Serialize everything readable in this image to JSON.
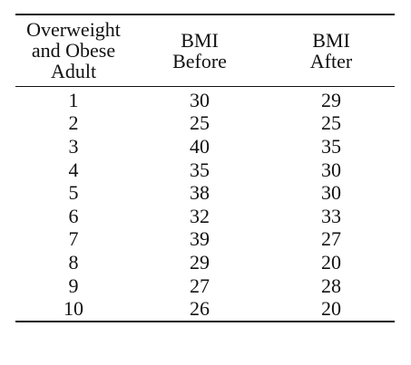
{
  "table": {
    "headers": [
      [
        "Overweight",
        "and Obese",
        "Adult"
      ],
      [
        "BMI",
        "Before"
      ],
      [
        "BMI",
        "After"
      ]
    ],
    "rows": [
      [
        "1",
        "30",
        "29"
      ],
      [
        "2",
        "25",
        "25"
      ],
      [
        "3",
        "40",
        "35"
      ],
      [
        "4",
        "35",
        "30"
      ],
      [
        "5",
        "38",
        "30"
      ],
      [
        "6",
        "32",
        "33"
      ],
      [
        "7",
        "39",
        "27"
      ],
      [
        "8",
        "29",
        "20"
      ],
      [
        "9",
        "27",
        "28"
      ],
      [
        "10",
        "26",
        "20"
      ]
    ]
  }
}
